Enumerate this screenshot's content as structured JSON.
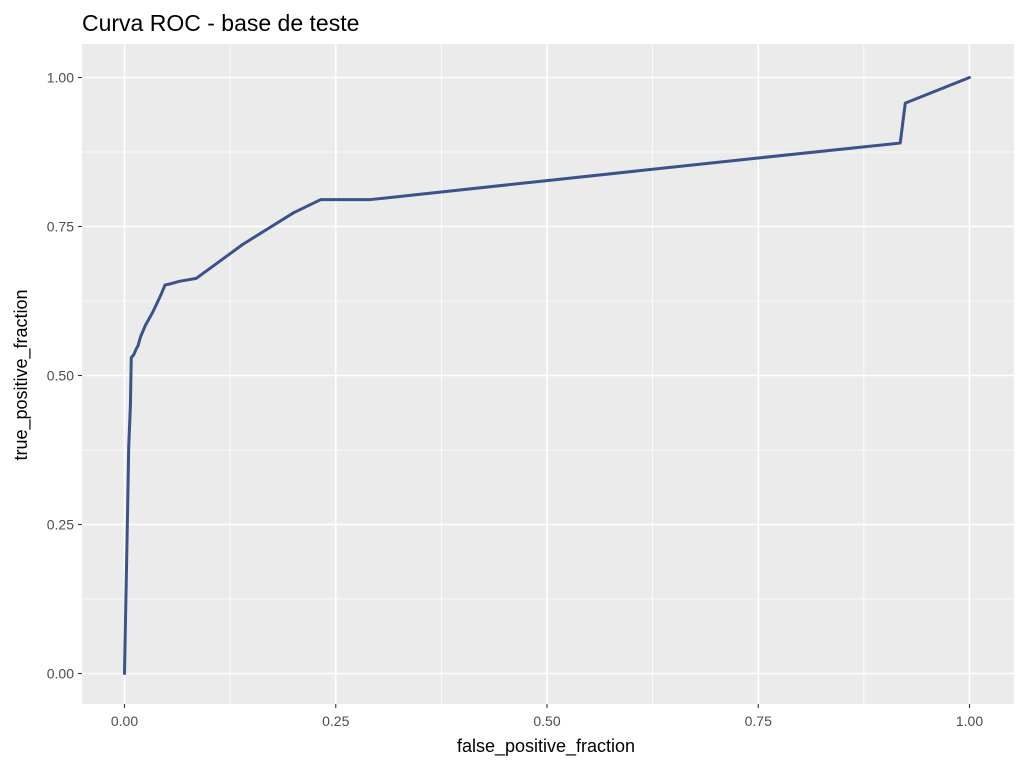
{
  "chart_data": {
    "type": "line",
    "title": "Curva ROC - base de teste",
    "xlabel": "false_positive_fraction",
    "ylabel": "true_positive_fraction",
    "xlim": [
      0,
      1
    ],
    "ylim": [
      0,
      1
    ],
    "x_ticks": [
      0,
      0.25,
      0.5,
      0.75,
      1
    ],
    "x_tick_labels": [
      "0.00",
      "0.25",
      "0.50",
      "0.75",
      "1.00"
    ],
    "y_ticks": [
      0,
      0.25,
      0.5,
      0.75,
      1
    ],
    "y_tick_labels": [
      "0.00",
      "0.25",
      "0.50",
      "0.75",
      "1.00"
    ],
    "grid": true,
    "panel_color": "#ebebeb",
    "grid_color": "#ffffff",
    "series": [
      {
        "color": "#3b528b",
        "x": [
          0.0,
          0.002,
          0.004,
          0.005,
          0.007,
          0.008,
          0.011,
          0.014,
          0.016,
          0.019,
          0.025,
          0.033,
          0.038,
          0.043,
          0.048,
          0.055,
          0.065,
          0.085,
          0.14,
          0.2,
          0.232,
          0.29,
          0.5,
          0.75,
          0.918,
          0.924,
          1.0
        ],
        "y": [
          0.0,
          0.15,
          0.3,
          0.38,
          0.45,
          0.53,
          0.535,
          0.545,
          0.55,
          0.565,
          0.585,
          0.605,
          0.62,
          0.635,
          0.652,
          0.654,
          0.658,
          0.663,
          0.72,
          0.773,
          0.795,
          0.795,
          0.827,
          0.865,
          0.89,
          0.957,
          1.0
        ]
      }
    ]
  }
}
